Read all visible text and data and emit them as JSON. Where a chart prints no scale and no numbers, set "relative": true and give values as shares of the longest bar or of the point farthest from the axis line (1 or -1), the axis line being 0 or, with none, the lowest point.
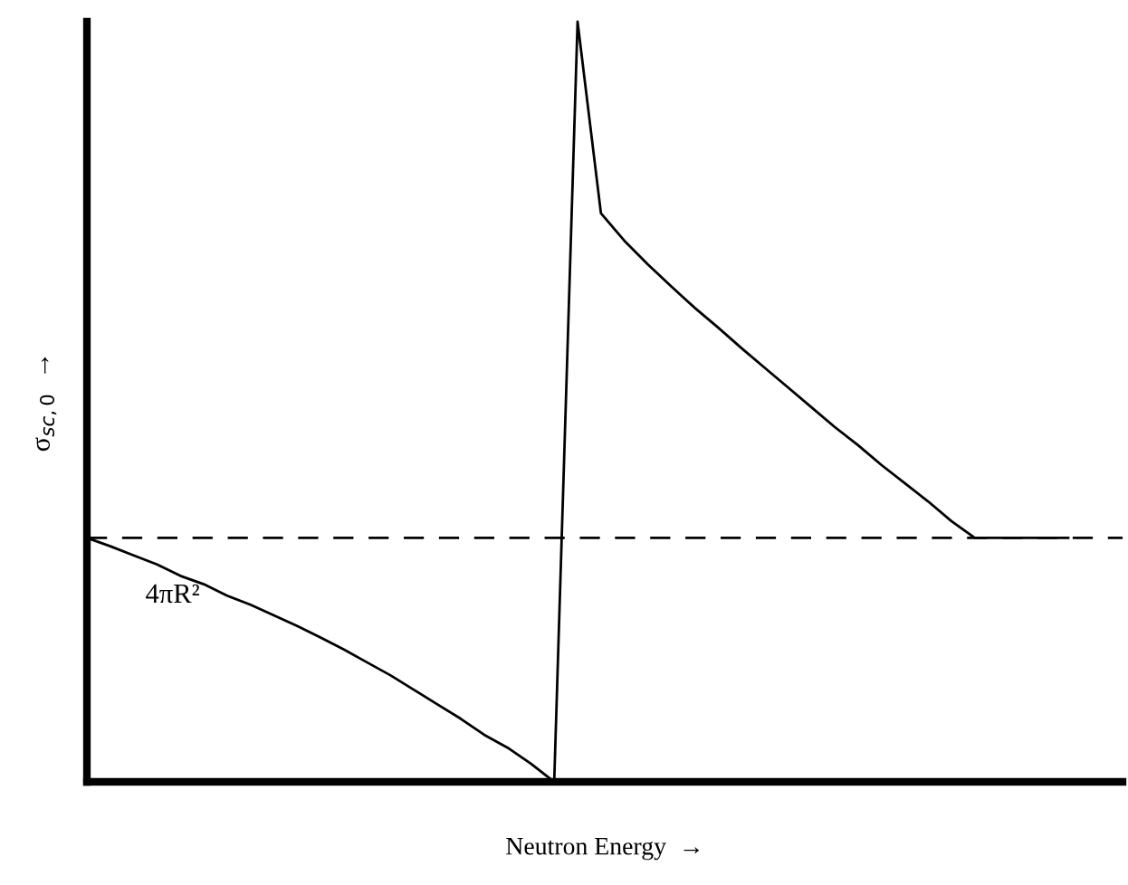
{
  "chart_data": {
    "type": "line",
    "relative": true,
    "xlabel": "Neutron Energy  →",
    "ylabel": "σ$_{sc,0}$  →",
    "categories": [
      null,
      null,
      null,
      null,
      null,
      null,
      null,
      null,
      null,
      null,
      null,
      null,
      null,
      null,
      null,
      null,
      null,
      null,
      null,
      null,
      null,
      null,
      null,
      null,
      null,
      null,
      null,
      null,
      null,
      null,
      null,
      null,
      null,
      null,
      null,
      null,
      null,
      null,
      null,
      null,
      null,
      null,
      null
    ],
    "series": [
      {
        "color": "#000000",
        "values": [
          0.321,
          0.31,
          0.298,
          0.286,
          0.271,
          0.26,
          0.245,
          0.233,
          0.219,
          0.205,
          0.19,
          0.174,
          0.157,
          0.14,
          0.121,
          0.102,
          0.083,
          0.062,
          0.045,
          0.024,
          0.0,
          null,
          null,
          null,
          null,
          null,
          null,
          null,
          null,
          null,
          null,
          null,
          null,
          null,
          null,
          null,
          null,
          null,
          null,
          null,
          null,
          null,
          null
        ]
      },
      {
        "color": "#000000",
        "values": [
          null,
          null,
          null,
          null,
          null,
          null,
          null,
          null,
          null,
          null,
          null,
          null,
          null,
          null,
          null,
          null,
          null,
          null,
          null,
          null,
          0.0,
          1.0,
          0.748,
          0.712,
          0.681,
          0.652,
          0.624,
          0.598,
          0.571,
          0.545,
          0.519,
          0.493,
          0.467,
          0.443,
          0.417,
          0.393,
          0.369,
          0.343,
          0.321,
          0.321,
          0.321,
          0.321,
          0.321
        ]
      }
    ],
    "ref_lines": [
      {
        "axis": "y",
        "value": 0.321,
        "label": "4πR²",
        "color": "#000000",
        "line_style": "dashed"
      }
    ],
    "marker": "none",
    "line_style": "solid"
  }
}
